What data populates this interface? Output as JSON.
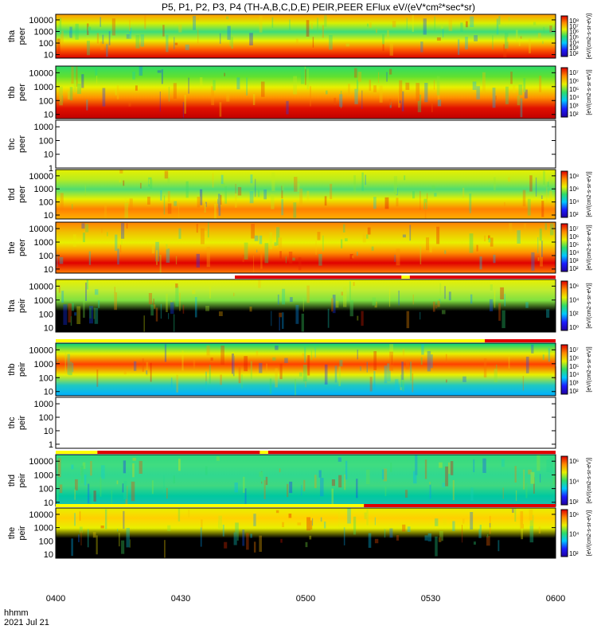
{
  "chart_data": {
    "type": "heatmap",
    "title": "P5, P1, P2, P3, P4 (TH-A,B,C,D,E) PEIR,PEER EFlux eV/(eV*cm²*sec*sr)",
    "time_label": "hhmm",
    "date_label": "2021 Jul 21",
    "x_ticks": [
      "0400",
      "0430",
      "0500",
      "0530",
      "0600"
    ],
    "x_range_minutes": [
      0,
      120
    ],
    "panels": [
      {
        "id": "tha-peer",
        "probe": "tha",
        "kind": "peer",
        "ylim": [
          5,
          30000
        ],
        "y_ticks": [
          "10",
          "100",
          "1000",
          "10000"
        ],
        "colorbar": true,
        "cb_ticks": [
          "10⁸",
          "10⁷",
          "10⁶",
          "10⁵",
          "10⁴",
          "10³",
          "10²"
        ],
        "cb_label": "[eV/(cm2-s-sr-eV)]",
        "blank": false
      },
      {
        "id": "thb-peer",
        "probe": "thb",
        "kind": "peer",
        "ylim": [
          5,
          30000
        ],
        "y_ticks": [
          "10",
          "100",
          "1000",
          "10000"
        ],
        "colorbar": true,
        "cb_ticks": [
          "10⁷",
          "10⁶",
          "10⁵",
          "10⁴",
          "10³",
          "10²"
        ],
        "cb_label": "[eV/(cm2-s-sr-eV)]",
        "blank": false
      },
      {
        "id": "thc-peer",
        "probe": "thc",
        "kind": "peer",
        "ylim": [
          1,
          3000
        ],
        "y_ticks": [
          "1",
          "10",
          "100",
          "1000"
        ],
        "colorbar": false,
        "cb_ticks": [],
        "cb_label": "",
        "blank": true
      },
      {
        "id": "thd-peer",
        "probe": "thd",
        "kind": "peer",
        "ylim": [
          5,
          30000
        ],
        "y_ticks": [
          "10",
          "100",
          "1000",
          "10000"
        ],
        "colorbar": true,
        "cb_ticks": [
          "10⁸",
          "10⁶",
          "10⁴",
          "10²"
        ],
        "cb_label": "[eV/(cm2-s-sr-eV)]",
        "blank": false
      },
      {
        "id": "the-peer",
        "probe": "the",
        "kind": "peer",
        "ylim": [
          5,
          30000
        ],
        "y_ticks": [
          "10",
          "100",
          "1000",
          "10000"
        ],
        "colorbar": true,
        "cb_ticks": [
          "10⁷",
          "10⁶",
          "10⁵",
          "10⁴",
          "10³",
          "10²"
        ],
        "cb_label": "[eV/(cm2-s-sr-eV)]",
        "blank": false
      },
      {
        "id": "tha-peir",
        "probe": "tha",
        "kind": "peir",
        "ylim": [
          5,
          30000
        ],
        "y_ticks": [
          "10",
          "100",
          "1000",
          "10000"
        ],
        "colorbar": true,
        "cb_ticks": [
          "10⁶",
          "10⁴",
          "10²",
          "10⁰"
        ],
        "cb_label": "[eV/(cm2-s-sr-eV)]",
        "blank": false
      },
      {
        "id": "thb-peir",
        "probe": "thb",
        "kind": "peir",
        "ylim": [
          5,
          30000
        ],
        "y_ticks": [
          "10",
          "100",
          "1000",
          "10000"
        ],
        "colorbar": true,
        "cb_ticks": [
          "10⁷",
          "10⁶",
          "10⁵",
          "10⁴",
          "10³",
          "10²"
        ],
        "cb_label": "[eV/(cm2-s-sr-eV)]",
        "blank": false
      },
      {
        "id": "thc-peir",
        "probe": "thc",
        "kind": "peir",
        "ylim": [
          0.5,
          3000
        ],
        "y_ticks": [
          "1",
          "10",
          "100",
          "1000"
        ],
        "colorbar": false,
        "cb_ticks": [],
        "cb_label": "",
        "blank": true
      },
      {
        "id": "thd-peir",
        "probe": "thd",
        "kind": "peir",
        "ylim": [
          5,
          30000
        ],
        "y_ticks": [
          "10",
          "100",
          "1000",
          "10000"
        ],
        "colorbar": true,
        "cb_ticks": [
          "10⁶",
          "10⁴",
          "10²"
        ],
        "cb_label": "[eV/(cm2-s-sr-eV)]",
        "blank": false
      },
      {
        "id": "the-peir",
        "probe": "the",
        "kind": "peir",
        "ylim": [
          5,
          30000
        ],
        "y_ticks": [
          "10",
          "100",
          "1000",
          "10000"
        ],
        "colorbar": true,
        "cb_ticks": [
          "10⁶",
          "10⁴",
          "10²"
        ],
        "cb_label": "[eV/(cm2-s-sr-eV)]",
        "blank": false
      }
    ],
    "mode_bars": [
      {
        "after_panel": "the-peer",
        "segments": [
          {
            "from": 0,
            "to": 43,
            "color": "#ffffff"
          },
          {
            "from": 43,
            "to": 83,
            "color": "#e00000"
          },
          {
            "from": 83,
            "to": 85,
            "color": "#ffff00"
          },
          {
            "from": 85,
            "to": 120,
            "color": "#e00000"
          }
        ]
      },
      {
        "after_panel": "tha-peir",
        "segments": [
          {
            "from": 0,
            "to": 103,
            "color": "#ffff00"
          },
          {
            "from": 103,
            "to": 120,
            "color": "#e00000"
          }
        ]
      },
      {
        "after_panel": "thc-peir",
        "segments": [
          {
            "from": 0,
            "to": 10,
            "color": "#ffff00"
          },
          {
            "from": 10,
            "to": 49,
            "color": "#e00000"
          },
          {
            "from": 49,
            "to": 51,
            "color": "#ffff00"
          },
          {
            "from": 51,
            "to": 120,
            "color": "#e00000"
          }
        ]
      },
      {
        "after_panel": "thd-peir",
        "segments": [
          {
            "from": 0,
            "to": 74,
            "color": "#ffff00"
          },
          {
            "from": 74,
            "to": 120,
            "color": "#e00000"
          }
        ]
      }
    ],
    "colors": {
      "background": "#ffffff",
      "axis": "#000000",
      "fill_gap": "#000000"
    }
  }
}
